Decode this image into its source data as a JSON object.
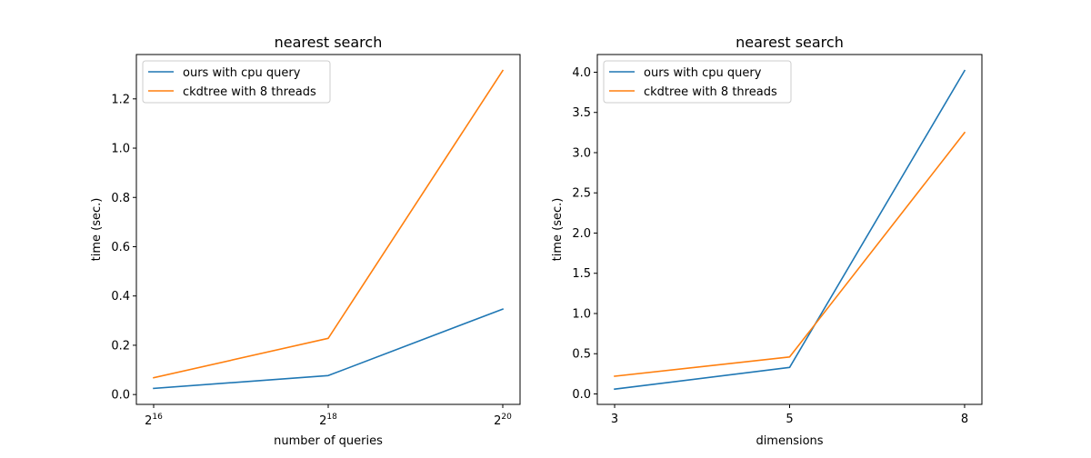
{
  "chart_data": [
    {
      "type": "line",
      "title": "nearest search",
      "xlabel": "number of queries",
      "ylabel": "time (sec.)",
      "x": [
        65536,
        262144,
        1048576
      ],
      "x_scale": "log2",
      "xticks": [
        {
          "base": "2",
          "exp": "16"
        },
        {
          "base": "2",
          "exp": "18"
        },
        {
          "base": "2",
          "exp": "20"
        }
      ],
      "yticks": [
        "0.0",
        "0.2",
        "0.4",
        "0.6",
        "0.8",
        "1.0",
        "1.2"
      ],
      "ylim": [
        -0.04,
        1.38
      ],
      "legend_position": "top-left",
      "series": [
        {
          "name": "ours with cpu query",
          "color": "#1f77b4",
          "values": [
            0.025,
            0.077,
            0.347
          ]
        },
        {
          "name": "ckdtree with 8 threads",
          "color": "#ff7f0e",
          "values": [
            0.068,
            0.228,
            1.315
          ]
        }
      ]
    },
    {
      "type": "line",
      "title": "nearest search",
      "xlabel": "dimensions",
      "ylabel": "time (sec.)",
      "x": [
        3,
        5,
        8
      ],
      "x_scale": "categorical",
      "xticks": [
        "3",
        "5",
        "8"
      ],
      "yticks": [
        "0.0",
        "0.5",
        "1.0",
        "1.5",
        "2.0",
        "2.5",
        "3.0",
        "3.5",
        "4.0"
      ],
      "ylim": [
        -0.13,
        4.22
      ],
      "legend_position": "top-left",
      "series": [
        {
          "name": "ours with cpu query",
          "color": "#1f77b4",
          "values": [
            0.06,
            0.33,
            4.02
          ]
        },
        {
          "name": "ckdtree with 8 threads",
          "color": "#ff7f0e",
          "values": [
            0.22,
            0.46,
            3.25
          ]
        }
      ]
    }
  ]
}
